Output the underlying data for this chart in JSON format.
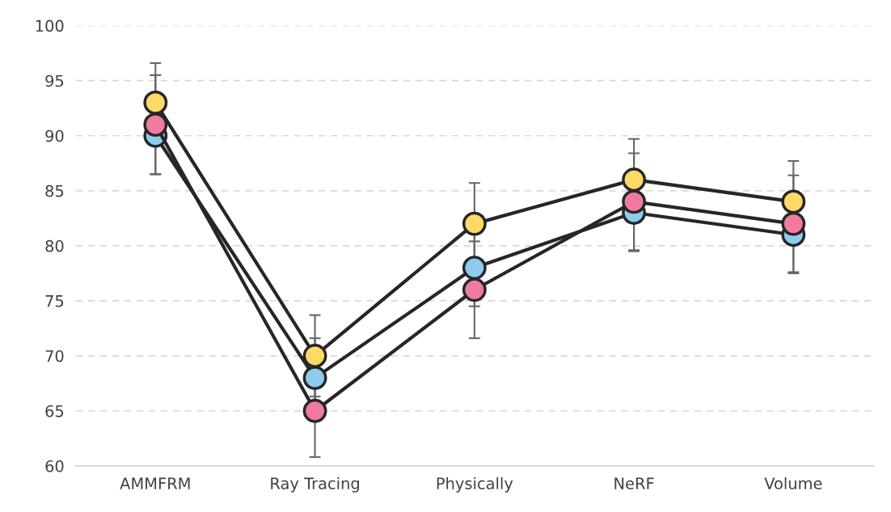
{
  "chart_data": {
    "type": "line",
    "categories": [
      "AMMFRM",
      "Ray Tracing",
      "Physically",
      "NeRF",
      "Volume"
    ],
    "series": [
      {
        "color": "#8ecbef",
        "values": [
          90,
          68,
          78,
          83,
          81
        ],
        "errors": [
          3.5,
          3.6,
          3.5,
          3.5,
          3.5
        ]
      },
      {
        "color": "#f07aa0",
        "values": [
          91,
          65,
          76,
          84,
          82
        ],
        "errors": [
          4.5,
          4.2,
          4.4,
          4.4,
          4.4
        ]
      },
      {
        "color": "#ffd966",
        "values": [
          93,
          70,
          82,
          86,
          84
        ],
        "errors": [
          3.6,
          3.7,
          3.7,
          3.7,
          3.7
        ]
      }
    ],
    "ylim": [
      60,
      100
    ],
    "yticks": [
      60,
      65,
      70,
      75,
      80,
      85,
      90,
      95,
      100
    ],
    "grid": "y",
    "marker": "circle",
    "line_style": "solid",
    "legend": false
  }
}
